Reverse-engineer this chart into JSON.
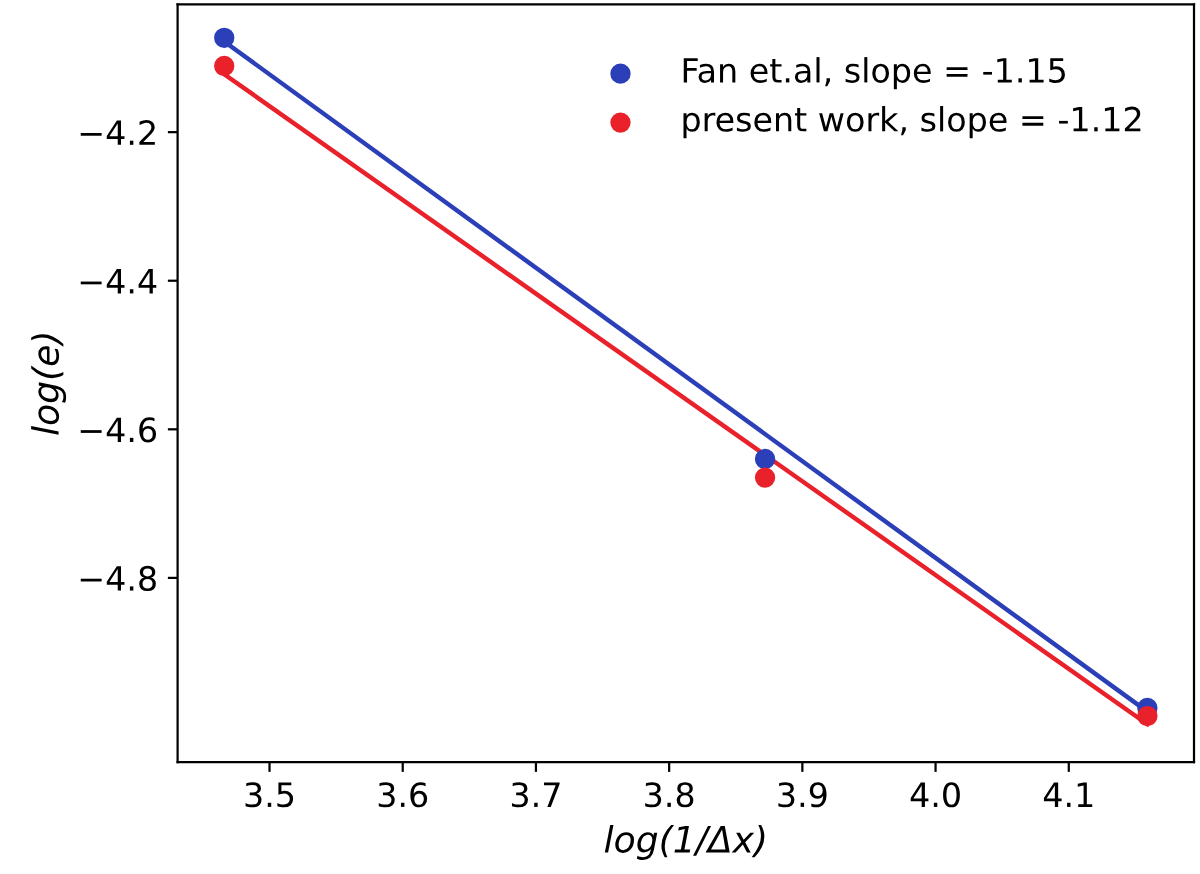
{
  "chart_data": {
    "type": "scatter",
    "xlabel": "log(1/Δx)",
    "ylabel": "log(e)",
    "xlim": [
      3.431,
      4.194
    ],
    "ylim": [
      -5.048,
      -4.028
    ],
    "xticks": [
      3.5,
      3.6,
      3.7,
      3.8,
      3.9,
      {
        "value": 4.0,
        "label": "4.0"
      },
      4.1
    ],
    "yticks": [
      -4.8,
      -4.6,
      -4.4,
      -4.2
    ],
    "grid": false,
    "legend": "top right",
    "series": [
      {
        "name": "Fan et.al, slope = -1.15",
        "marker": "circle",
        "color": "#2b3fb8",
        "x": [
          3.466,
          3.872,
          4.159
        ],
        "values": [
          -4.073,
          -4.64,
          -4.975
        ]
      },
      {
        "name": "present work, slope = -1.12",
        "marker": "circle",
        "color": "#e8212a",
        "x": [
          3.466,
          3.872,
          4.159
        ],
        "values": [
          -4.111,
          -4.665,
          -4.986
        ]
      },
      {
        "type": "line",
        "color": "#2b3fb8",
        "x": [
          3.466,
          4.159
        ],
        "values": [
          -4.078,
          -4.98
        ]
      },
      {
        "type": "line",
        "color": "#e8212a",
        "x": [
          3.466,
          4.159
        ],
        "values": [
          -4.122,
          -4.997
        ]
      }
    ]
  }
}
